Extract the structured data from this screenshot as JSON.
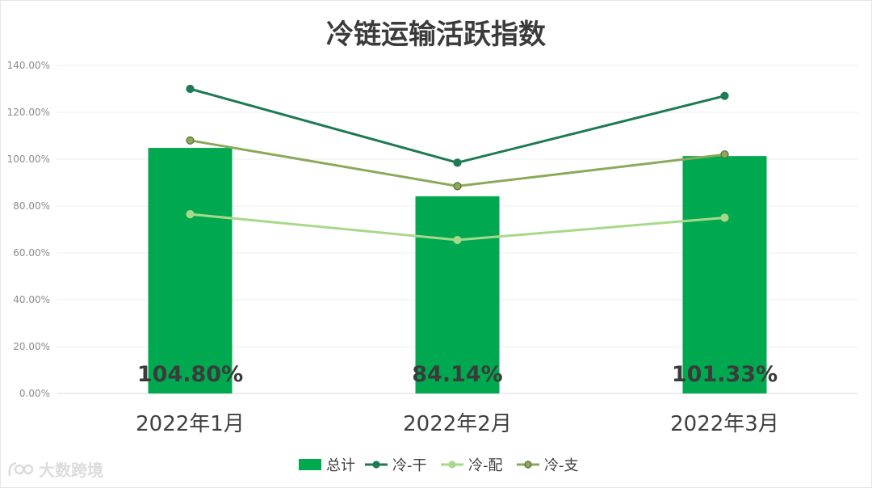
{
  "chart_data": {
    "type": "bar",
    "title": "冷链运输活跃指数",
    "categories": [
      "2022年1月",
      "2022年2月",
      "2022年3月"
    ],
    "ylim": [
      0,
      140
    ],
    "yticks": [
      "0.00%",
      "20.00%",
      "40.00%",
      "60.00%",
      "80.00%",
      "100.00%",
      "120.00%",
      "140.00%"
    ],
    "grid": true,
    "legend_position": "bottom",
    "series": [
      {
        "name": "总计",
        "kind": "bar",
        "color": "#00a94f",
        "values": [
          104.8,
          84.14,
          101.33
        ],
        "labels": [
          "104.80%",
          "84.14%",
          "101.33%"
        ]
      },
      {
        "name": "冷-干",
        "kind": "line",
        "color": "#1e7a52",
        "values": [
          130,
          98.5,
          127
        ]
      },
      {
        "name": "冷-配",
        "kind": "line",
        "color": "#a8d98a",
        "values": [
          76.5,
          65.5,
          75
        ]
      },
      {
        "name": "冷-支",
        "kind": "line",
        "color": "#8aaa5a",
        "values": [
          108,
          88.5,
          102
        ]
      }
    ]
  },
  "watermark": {
    "text": "大数跨境"
  }
}
